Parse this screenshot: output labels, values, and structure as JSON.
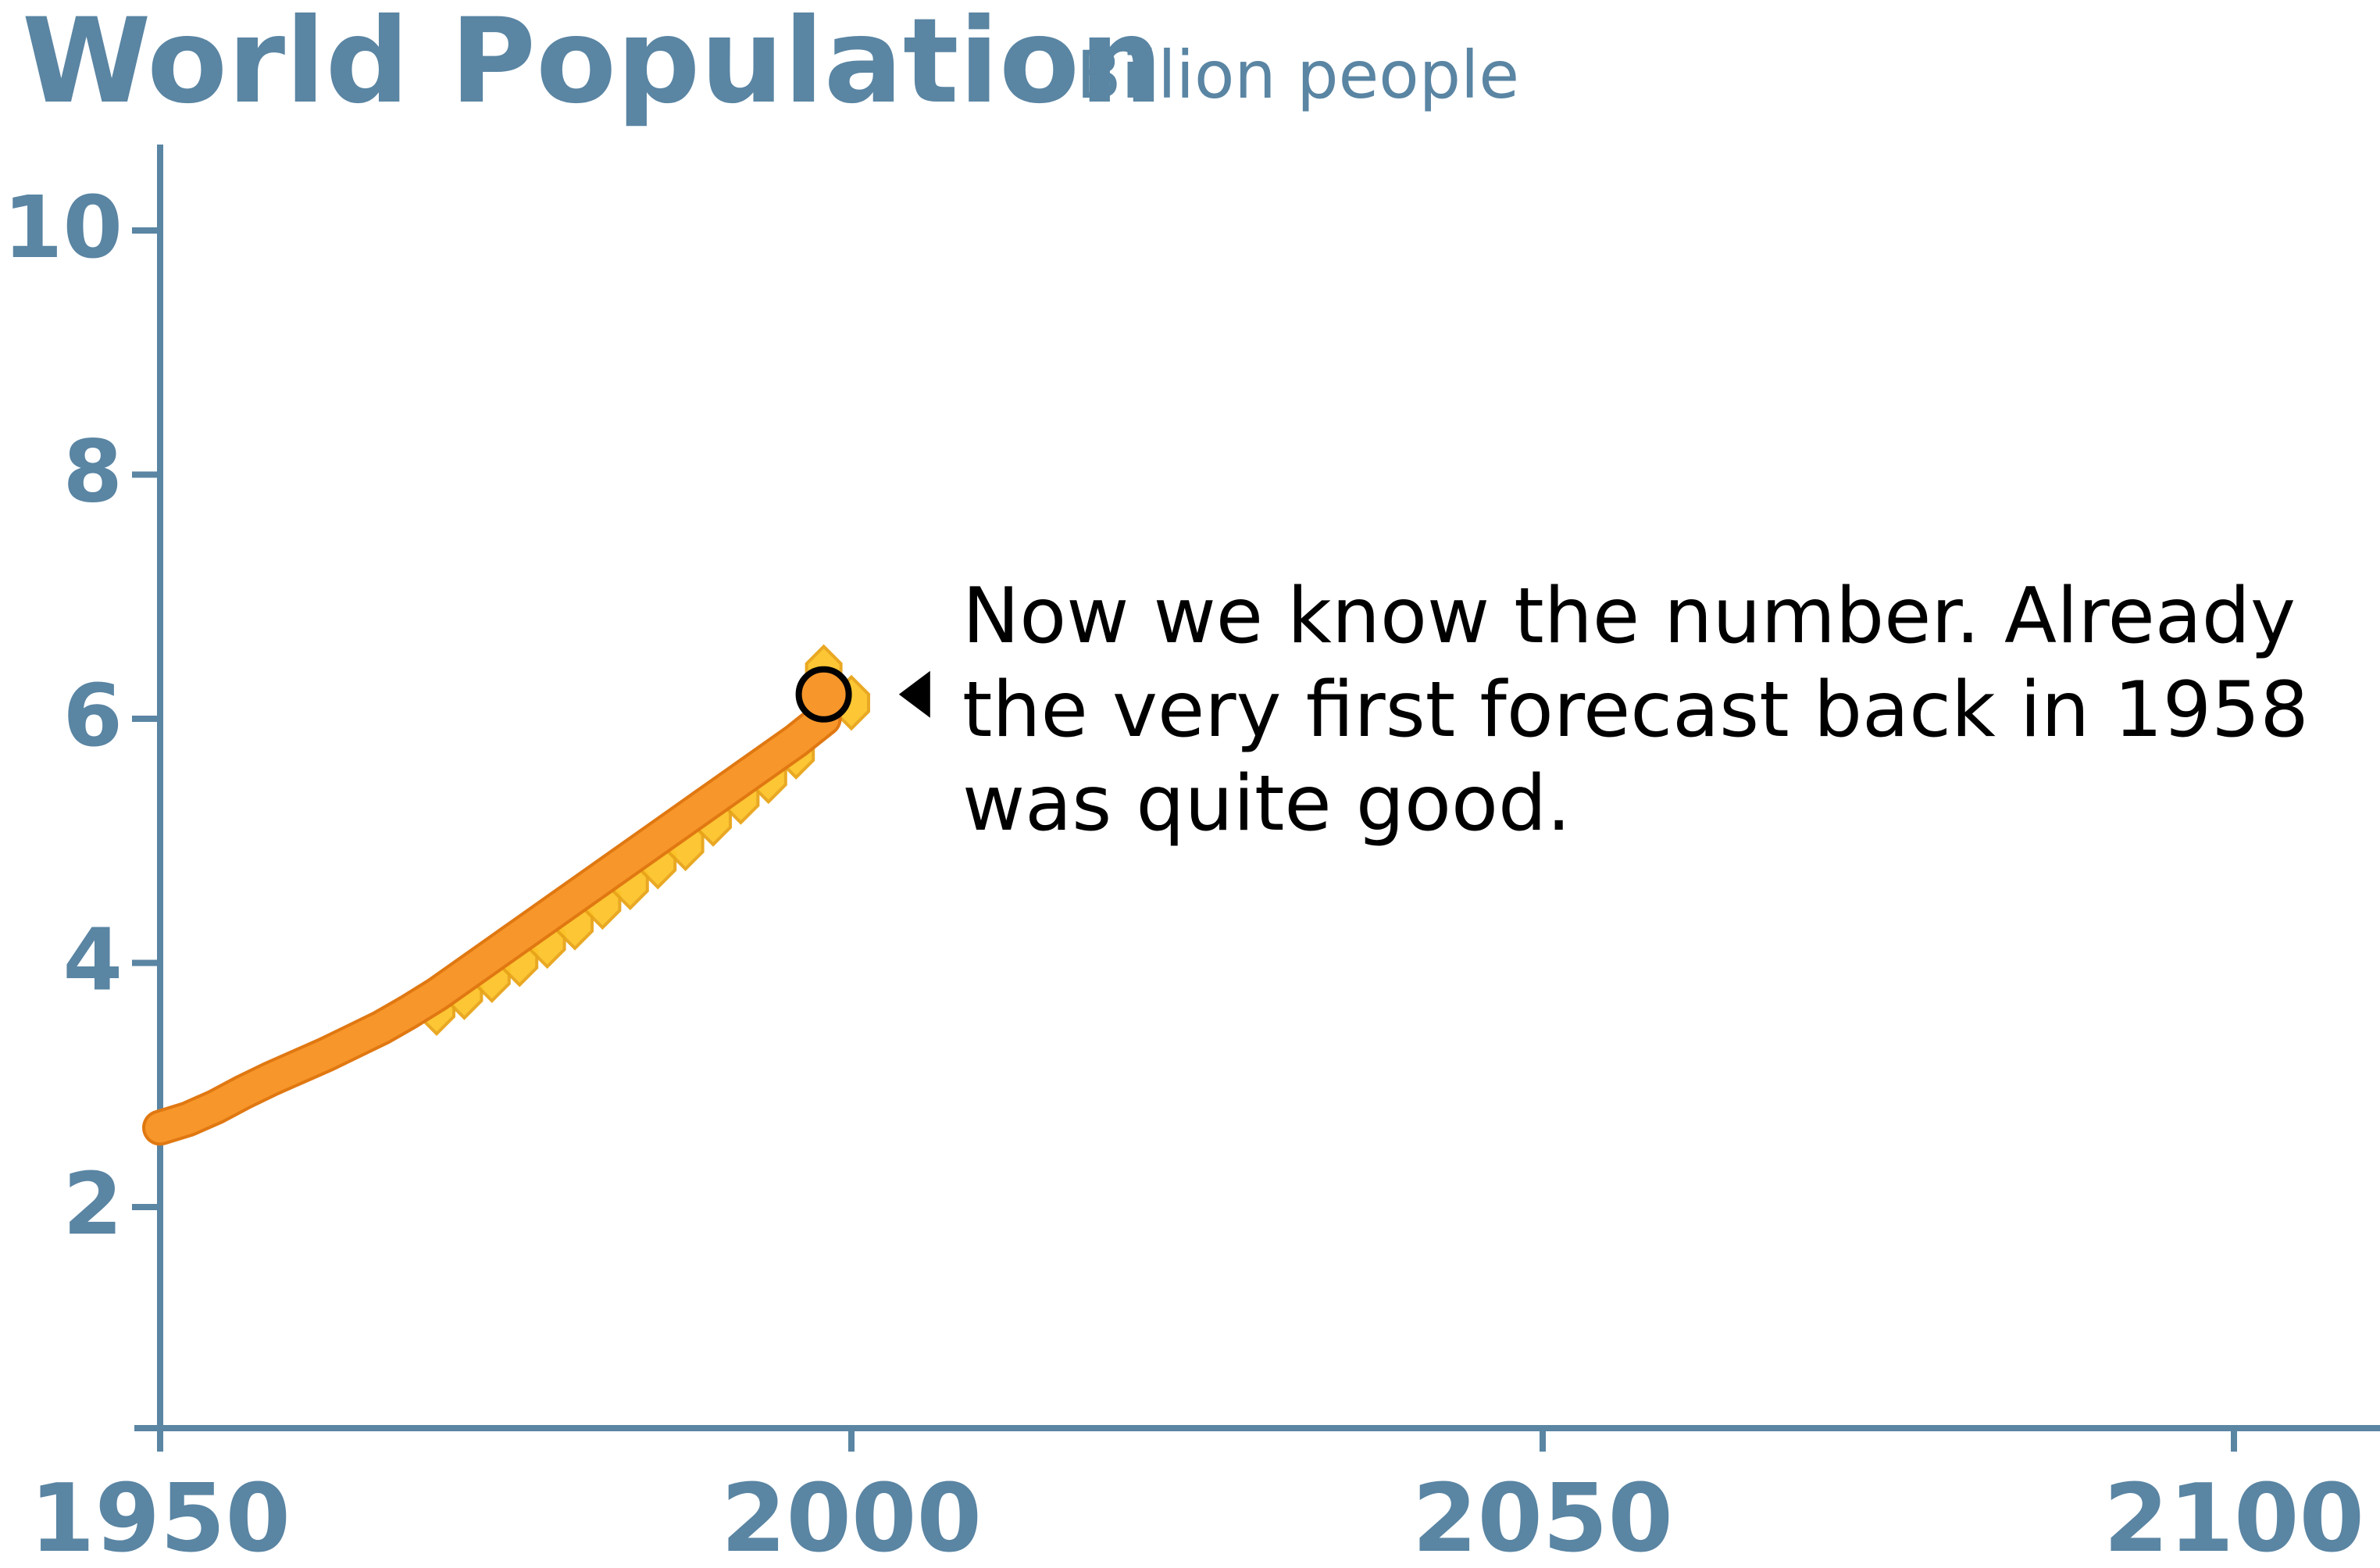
{
  "chart_data": {
    "type": "line",
    "title": "World Population",
    "subtitle": "Billion people",
    "xlabel": "",
    "ylabel": "",
    "xlim": [
      1950,
      2110
    ],
    "ylim": [
      0,
      10.5
    ],
    "x_ticks": [
      1950,
      2000,
      2050,
      2100
    ],
    "y_ticks": [
      2,
      4,
      6,
      8,
      10
    ],
    "x_tick_labels": [
      "1950",
      "2000",
      "2050",
      "2100"
    ],
    "y_tick_labels": [
      "2",
      "4",
      "6",
      "8",
      "10"
    ],
    "grid": false,
    "series": [
      {
        "x": [
          1950,
          1952,
          1954,
          1956,
          1958,
          1960,
          1962,
          1964,
          1966,
          1968,
          1970,
          1972,
          1974,
          1976,
          1978,
          1980,
          1982,
          1984,
          1986,
          1988,
          1990,
          1992,
          1994,
          1996,
          1998
        ],
        "values": [
          2.65,
          2.72,
          2.82,
          2.94,
          3.05,
          3.15,
          3.25,
          3.36,
          3.47,
          3.6,
          3.74,
          3.9,
          4.06,
          4.22,
          4.38,
          4.54,
          4.7,
          4.86,
          5.02,
          5.18,
          5.34,
          5.5,
          5.66,
          5.82,
          6.0
        ]
      },
      {
        "x": [
          1970,
          1972,
          1974,
          1976,
          1978,
          1980,
          1982,
          1984,
          1986,
          1988,
          1990,
          1992,
          1994,
          1996,
          1998,
          2000
        ],
        "values": [
          3.65,
          3.78,
          3.92,
          4.05,
          4.2,
          4.35,
          4.52,
          4.68,
          4.85,
          5.0,
          5.2,
          5.38,
          5.55,
          5.75,
          6.4,
          6.15
        ]
      }
    ],
    "highlight_point": {
      "x": 1998,
      "y": 6.2
    },
    "annotation": {
      "lines": [
        "Now we know the number. Already",
        "the very first forecast back in 1958",
        "was quite good."
      ],
      "x": 2004,
      "y": 6.2
    },
    "colors": {
      "axis": "#5a85a3",
      "actual_line": "#f7962a",
      "actual_line_edge": "#e07812",
      "forecast_marker": "#fcc42a",
      "forecast_marker_edge": "#e8a419",
      "point_fill": "#f7962a",
      "text": "#000000"
    }
  }
}
